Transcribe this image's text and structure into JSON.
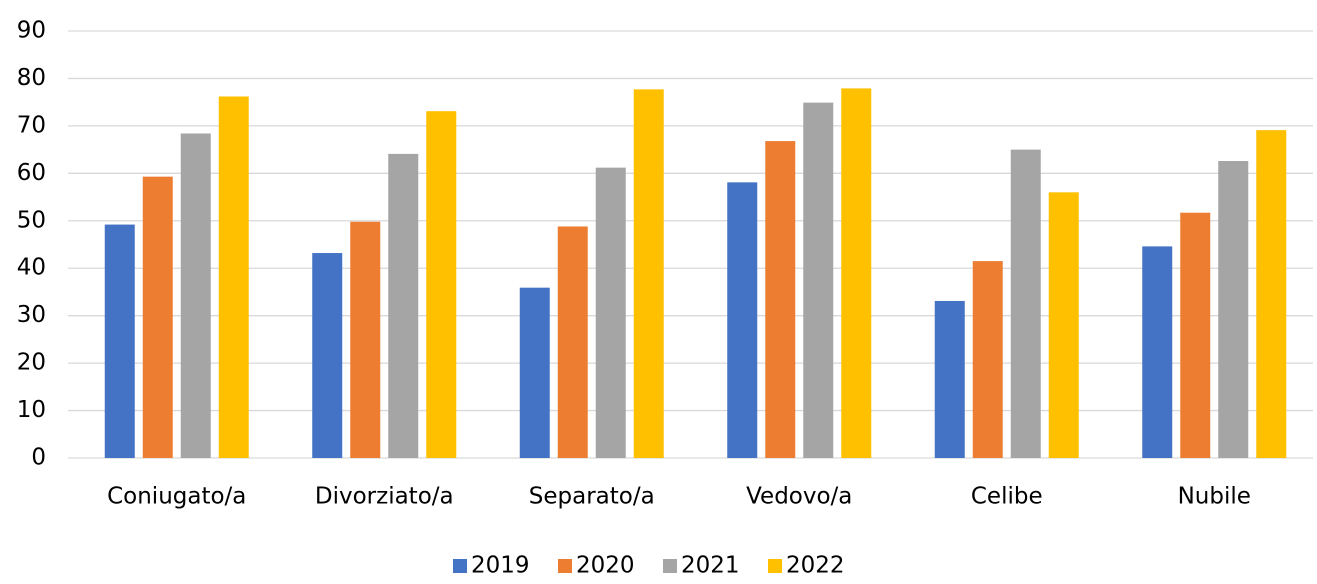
{
  "chart_data": {
    "type": "bar",
    "categories": [
      "Coniugato/a",
      "Divorziato/a",
      "Separato/a",
      "Vedovo/a",
      "Celibe",
      "Nubile"
    ],
    "series": [
      {
        "name": "2019",
        "color": "#4472c4",
        "values": [
          49.2,
          43.2,
          35.9,
          58.1,
          33.1,
          44.6
        ]
      },
      {
        "name": "2020",
        "color": "#ed7d31",
        "values": [
          59.3,
          49.8,
          48.8,
          66.8,
          41.5,
          51.7
        ]
      },
      {
        "name": "2021",
        "color": "#a5a5a5",
        "values": [
          68.4,
          64.1,
          61.2,
          74.9,
          65.0,
          62.6
        ]
      },
      {
        "name": "2022",
        "color": "#ffc000",
        "values": [
          76.2,
          73.1,
          77.7,
          77.9,
          56.0,
          69.1
        ]
      }
    ],
    "ylim": [
      0,
      90
    ],
    "yticks": [
      0,
      10,
      20,
      30,
      40,
      50,
      60,
      70,
      80,
      90
    ],
    "grid": true,
    "legend": "bottom"
  }
}
